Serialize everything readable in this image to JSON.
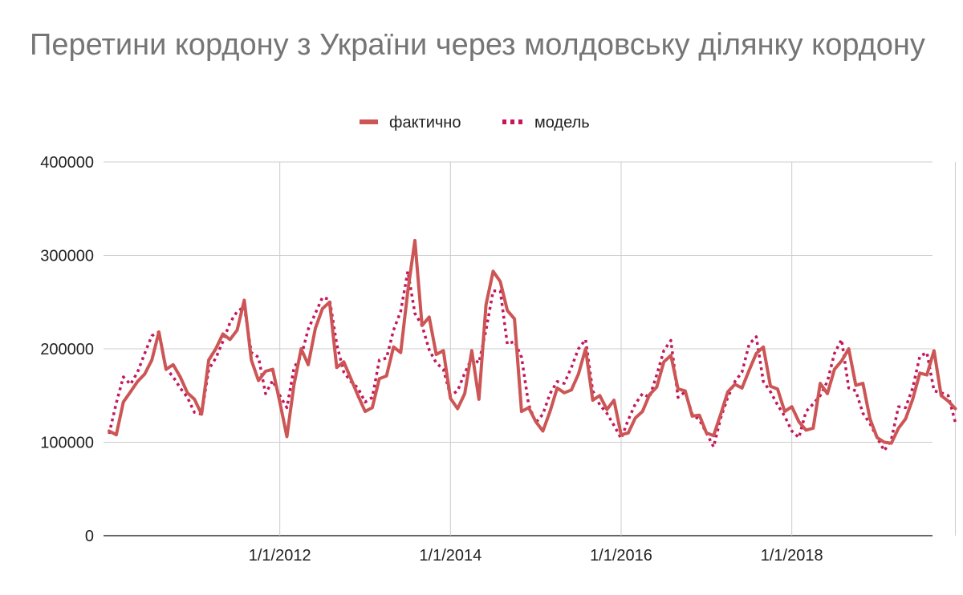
{
  "chart_data": {
    "type": "line",
    "title": "Перетини кордону з України через молдовську ділянку кордону",
    "xlabel": "",
    "ylabel": "",
    "ylim": [
      0,
      400000
    ],
    "yticks": [
      0,
      100000,
      200000,
      300000,
      400000
    ],
    "ytick_labels": [
      "0",
      "100000",
      "200000",
      "300000",
      "400000"
    ],
    "xticks": [
      "1/1/2012",
      "1/1/2014",
      "1/1/2016",
      "1/1/2018"
    ],
    "x_range": [
      "2010-01",
      "2019-12"
    ],
    "grid": true,
    "legend_position": "top-center",
    "x": [
      "2010-01",
      "2010-02",
      "2010-03",
      "2010-04",
      "2010-05",
      "2010-06",
      "2010-07",
      "2010-08",
      "2010-09",
      "2010-10",
      "2010-11",
      "2010-12",
      "2011-01",
      "2011-02",
      "2011-03",
      "2011-04",
      "2011-05",
      "2011-06",
      "2011-07",
      "2011-08",
      "2011-09",
      "2011-10",
      "2011-11",
      "2011-12",
      "2012-01",
      "2012-02",
      "2012-03",
      "2012-04",
      "2012-05",
      "2012-06",
      "2012-07",
      "2012-08",
      "2012-09",
      "2012-10",
      "2012-11",
      "2012-12",
      "2013-01",
      "2013-02",
      "2013-03",
      "2013-04",
      "2013-05",
      "2013-06",
      "2013-07",
      "2013-08",
      "2013-09",
      "2013-10",
      "2013-11",
      "2013-12",
      "2014-01",
      "2014-02",
      "2014-03",
      "2014-04",
      "2014-05",
      "2014-06",
      "2014-07",
      "2014-08",
      "2014-09",
      "2014-10",
      "2014-11",
      "2014-12",
      "2015-01",
      "2015-02",
      "2015-03",
      "2015-04",
      "2015-05",
      "2015-06",
      "2015-07",
      "2015-08",
      "2015-09",
      "2015-10",
      "2015-11",
      "2015-12",
      "2016-01",
      "2016-02",
      "2016-03",
      "2016-04",
      "2016-05",
      "2016-06",
      "2016-07",
      "2016-08",
      "2016-09",
      "2016-10",
      "2016-11",
      "2016-12",
      "2017-01",
      "2017-02",
      "2017-03",
      "2017-04",
      "2017-05",
      "2017-06",
      "2017-07",
      "2017-08",
      "2017-09",
      "2017-10",
      "2017-11",
      "2017-12",
      "2018-01",
      "2018-02",
      "2018-03",
      "2018-04",
      "2018-05",
      "2018-06",
      "2018-07",
      "2018-08",
      "2018-09",
      "2018-10",
      "2018-11",
      "2018-12",
      "2019-01",
      "2019-02",
      "2019-03",
      "2019-04",
      "2019-05",
      "2019-06",
      "2019-07",
      "2019-08",
      "2019-09",
      "2019-10",
      "2019-11",
      "2019-12"
    ],
    "series": [
      {
        "name": "фактично",
        "color": "#cc5555",
        "style": "solid",
        "values": [
          112000,
          108000,
          143000,
          154000,
          165000,
          173000,
          188000,
          218000,
          178000,
          183000,
          170000,
          153000,
          146000,
          130000,
          188000,
          200000,
          216000,
          210000,
          220000,
          252000,
          188000,
          166000,
          176000,
          178000,
          143000,
          106000,
          162000,
          200000,
          183000,
          222000,
          243000,
          250000,
          180000,
          186000,
          168000,
          150000,
          133000,
          137000,
          168000,
          171000,
          202000,
          196000,
          262000,
          316000,
          225000,
          234000,
          194000,
          198000,
          147000,
          136000,
          152000,
          198000,
          146000,
          247000,
          283000,
          272000,
          241000,
          232000,
          133000,
          137000,
          122000,
          112000,
          133000,
          158000,
          153000,
          156000,
          173000,
          200000,
          145000,
          150000,
          135000,
          145000,
          108000,
          110000,
          126000,
          133000,
          151000,
          159000,
          186000,
          193000,
          157000,
          155000,
          128000,
          129000,
          110000,
          107000,
          130000,
          154000,
          162000,
          158000,
          177000,
          195000,
          202000,
          160000,
          157000,
          133000,
          138000,
          122000,
          113000,
          115000,
          163000,
          152000,
          178000,
          187000,
          200000,
          161000,
          163000,
          125000,
          105000,
          100000,
          99000,
          115000,
          125000,
          146000,
          174000,
          172000,
          198000,
          150000,
          144000,
          136000
        ]
      },
      {
        "name": "модель",
        "color": "#c2185b",
        "style": "dotted",
        "values": [
          109000,
          142000,
          170000,
          162000,
          175000,
          195000,
          214000,
          218000,
          179000,
          170000,
          158000,
          148000,
          132000,
          130000,
          178000,
          190000,
          208000,
          228000,
          240000,
          245000,
          196000,
          191000,
          152000,
          166000,
          150000,
          137000,
          180000,
          192000,
          221000,
          238000,
          255000,
          253000,
          205000,
          175000,
          165000,
          158000,
          143000,
          148000,
          188000,
          190000,
          220000,
          240000,
          283000,
          238000,
          225000,
          199000,
          185000,
          178000,
          150000,
          155000,
          174000,
          190000,
          185000,
          220000,
          262000,
          262000,
          205000,
          208000,
          191000,
          140000,
          121000,
          130000,
          152000,
          165000,
          163000,
          180000,
          200000,
          210000,
          155000,
          140000,
          131000,
          118000,
          104000,
          124000,
          141000,
          152000,
          148000,
          172000,
          198000,
          209000,
          148000,
          154000,
          130000,
          124000,
          110000,
          95000,
          126000,
          148000,
          165000,
          175000,
          205000,
          213000,
          165000,
          154000,
          140000,
          128000,
          112000,
          105000,
          133000,
          141000,
          150000,
          165000,
          195000,
          210000,
          158000,
          155000,
          131000,
          120000,
          105000,
          91000,
          103000,
          138000,
          137000,
          158000,
          192000,
          196000,
          155000,
          153000,
          150000,
          121000
        ]
      }
    ]
  }
}
